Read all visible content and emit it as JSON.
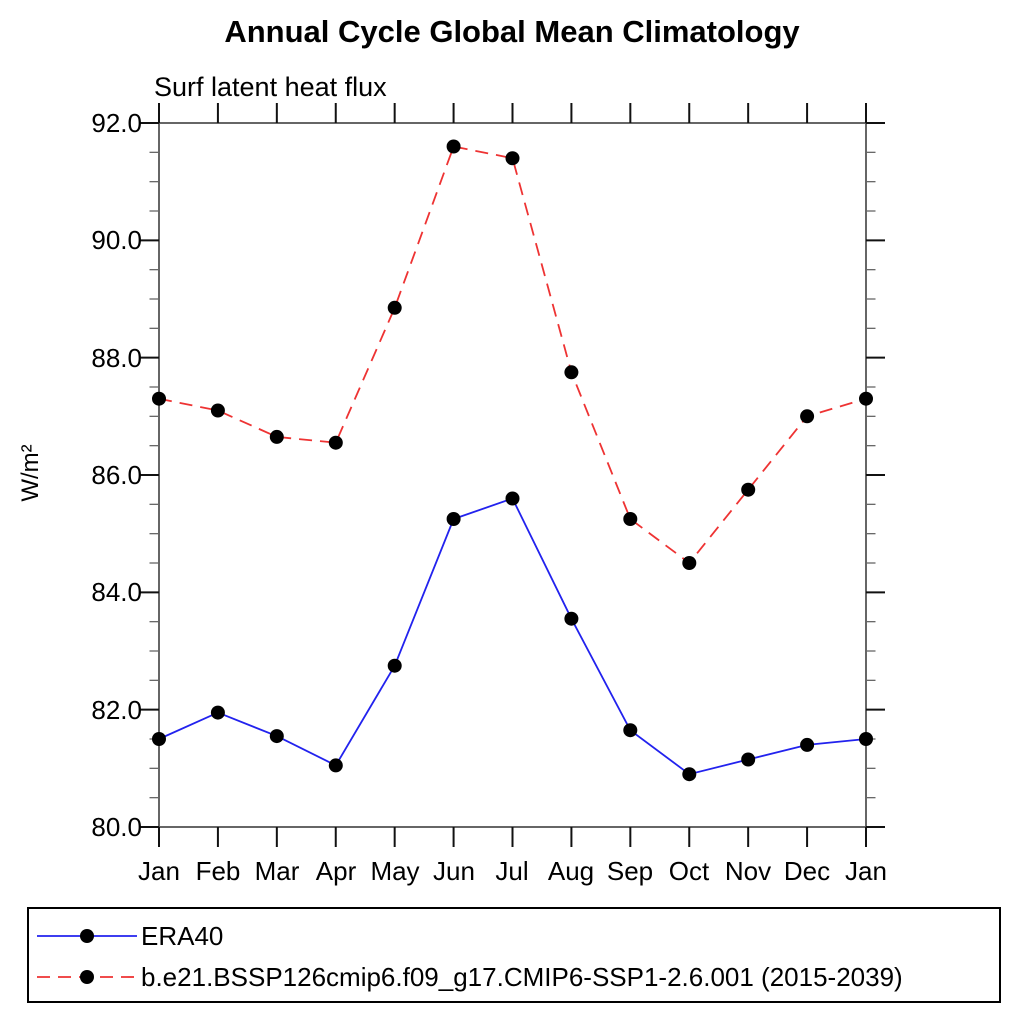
{
  "title": "Annual Cycle Global Mean Climatology",
  "subtitle": "Surf latent heat flux",
  "y_axis_title": "W/m²",
  "chart_data": {
    "type": "line",
    "title": "Annual Cycle Global Mean Climatology",
    "subtitle": "Surf latent heat flux",
    "xlabel": "",
    "ylabel": "W/m²",
    "categories": [
      "Jan",
      "Feb",
      "Mar",
      "Apr",
      "May",
      "Jun",
      "Jul",
      "Aug",
      "Sep",
      "Oct",
      "Nov",
      "Dec",
      "Jan"
    ],
    "series": [
      {
        "name": "ERA40",
        "color": "#2222ee",
        "line_style": "solid",
        "marker": "filled-black-circle",
        "values": [
          81.5,
          81.95,
          81.55,
          81.05,
          82.75,
          85.25,
          85.6,
          83.55,
          81.65,
          80.9,
          81.15,
          81.4,
          81.5
        ]
      },
      {
        "name": "b.e21.BSSP126cmip6.f09_g17.CMIP6-SSP1-2.6.001 (2015-2039)",
        "color": "#ee3333",
        "line_style": "dashed",
        "marker": "filled-black-circle",
        "values": [
          87.3,
          87.1,
          86.65,
          86.55,
          88.85,
          91.6,
          91.4,
          87.75,
          85.25,
          84.5,
          85.75,
          87.0,
          87.3
        ]
      }
    ],
    "ylim": [
      80.0,
      92.0
    ],
    "y_tick_interval": 2.0,
    "y_minor_tick_interval": 0.5,
    "y_tick_labels": [
      "92.0",
      "90.0",
      "88.0",
      "86.0",
      "84.0",
      "82.0",
      "80.0"
    ],
    "grid": false,
    "frame": "boxed-all-sides-outward-ticks",
    "legend_position": "below-plot-boxed",
    "marker_color": "#000000"
  }
}
